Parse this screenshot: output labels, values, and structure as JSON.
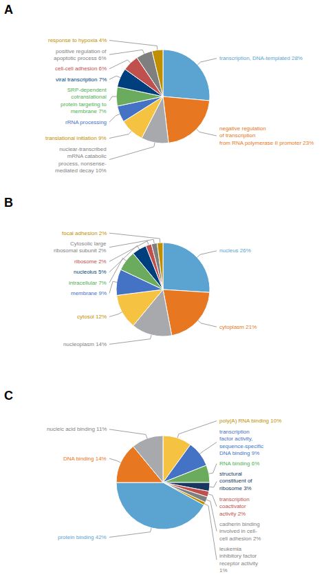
{
  "chart_data": [
    {
      "type": "pie",
      "title": "A",
      "values": [
        28,
        23,
        10,
        9,
        6,
        7,
        7,
        6,
        6,
        4
      ],
      "colors": [
        "#5BA3D0",
        "#E87722",
        "#A8A9AD",
        "#F5C242",
        "#4472C4",
        "#6AAB5E",
        "#003F7D",
        "#C0504D",
        "#7F7F7F",
        "#BF8F00"
      ],
      "annotations": [
        {
          "text": "transcription, DNA-templated 28%",
          "color": "#5BA3D0"
        },
        {
          "text": "negative regulation\nof transcription\nfrom RNA polymerase II promoter 23%",
          "color": "#E87722"
        },
        {
          "text": "nuclear-transcribed\nmRNA catabolic\nprocess, nonsense-\nmediated decay 10%",
          "color": "#7F7F7F"
        },
        {
          "text": "translational initiation 9%",
          "color": "#BF8F00"
        },
        {
          "text": "rRNA processing",
          "color": "#4472C4"
        },
        {
          "text": "SRP-dependent\ncotranslational\nprotein targeting to\nmembrane 7%",
          "color": "#4CAF50"
        },
        {
          "text": "viral transcription 7%",
          "color": "#003F7D"
        },
        {
          "text": "cell-cell adhesion 6%",
          "color": "#C0504D"
        },
        {
          "text": "positive regulation of\napoptotic process 6%",
          "color": "#7F7F7F"
        },
        {
          "text": "response to hypoxia 4%",
          "color": "#BF8F00"
        }
      ]
    },
    {
      "type": "pie",
      "title": "B",
      "values": [
        26,
        21,
        14,
        12,
        9,
        7,
        5,
        2,
        2,
        2
      ],
      "colors": [
        "#5BA3D0",
        "#E87722",
        "#A8A9AD",
        "#F5C242",
        "#4472C4",
        "#6AAB5E",
        "#003F7D",
        "#C0504D",
        "#7F7F7F",
        "#BF8F00"
      ],
      "annotations": [
        {
          "text": "nucleus 26%",
          "color": "#5BA3D0"
        },
        {
          "text": "cytoplasm 21%",
          "color": "#E87722"
        },
        {
          "text": "nucleoplasm 14%",
          "color": "#7F7F7F"
        },
        {
          "text": "cytosol 12%",
          "color": "#BF8F00"
        },
        {
          "text": "membrane 9%",
          "color": "#4472C4"
        },
        {
          "text": "intracellular 7%",
          "color": "#4CAF50"
        },
        {
          "text": "nucleolus 5%",
          "color": "#003F7D"
        },
        {
          "text": "ribosome 2%",
          "color": "#C0504D"
        },
        {
          "text": "Cytosolic large\nribosomal subunit 2%",
          "color": "#7F7F7F"
        },
        {
          "text": "focal adhesion 2%",
          "color": "#BF8F00"
        }
      ]
    },
    {
      "type": "pie",
      "title": "C",
      "values": [
        10,
        9,
        6,
        3,
        2,
        2,
        1,
        42,
        14,
        11
      ],
      "colors": [
        "#F5C242",
        "#4472C4",
        "#6AAB5E",
        "#17375E",
        "#C0504D",
        "#808080",
        "#BF8F00",
        "#5BA3D0",
        "#E87722",
        "#A8A9AD"
      ],
      "annotations": [
        {
          "text": "poly(A) RNA binding 10%",
          "color": "#BF8F00"
        },
        {
          "text": "transcription\nfactor activity,\nsequence-specific\nDNA binding 9%",
          "color": "#4472C4"
        },
        {
          "text": "RNA binding 6%",
          "color": "#4CAF50"
        },
        {
          "text": "structural\nconstituent of\nribosome 3%",
          "color": "#17375E"
        },
        {
          "text": "transcription\ncoactivator\nactivity 2%",
          "color": "#C0504D"
        },
        {
          "text": "cadherin binding\ninvolved in cell-\ncell adhesion 2%",
          "color": "#7F7F7F"
        },
        {
          "text": "leukemia\ninhibitory factor\nreceptor activity\n1%",
          "color": "#7F7F7F"
        },
        {
          "text": "protein binding 42%",
          "color": "#5BA3D0"
        },
        {
          "text": "DNA binding 14%",
          "color": "#E87722"
        },
        {
          "text": "nucleic acid binding 11%",
          "color": "#7F7F7F"
        }
      ]
    }
  ]
}
